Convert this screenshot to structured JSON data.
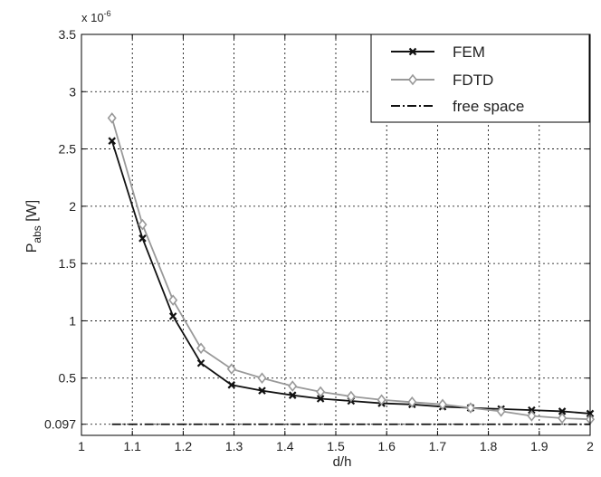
{
  "chart_data": {
    "type": "line",
    "xlabel": "d/h",
    "ylabel_main": "P",
    "ylabel_sub": "abs",
    "ylabel_tail": " [W]",
    "exponent_label": {
      "base": "x 10",
      "power": "-6"
    },
    "xlim": [
      1,
      2
    ],
    "ylim": [
      0,
      3.5
    ],
    "grid": true,
    "legend_position": "top-right",
    "x_ticks": [
      {
        "value": 1.0,
        "label": "1"
      },
      {
        "value": 1.1,
        "label": "1.1"
      },
      {
        "value": 1.2,
        "label": "1.2"
      },
      {
        "value": 1.3,
        "label": "1.3"
      },
      {
        "value": 1.4,
        "label": "1.4"
      },
      {
        "value": 1.5,
        "label": "1.5"
      },
      {
        "value": 1.6,
        "label": "1.6"
      },
      {
        "value": 1.7,
        "label": "1.7"
      },
      {
        "value": 1.8,
        "label": "1.8"
      },
      {
        "value": 1.9,
        "label": "1.9"
      },
      {
        "value": 2.0,
        "label": "2"
      }
    ],
    "y_ticks": [
      {
        "value": 0.097,
        "label": "0.097"
      },
      {
        "value": 0.5,
        "label": "0.5"
      },
      {
        "value": 1.0,
        "label": "1"
      },
      {
        "value": 1.5,
        "label": "1.5"
      },
      {
        "value": 2.0,
        "label": "2"
      },
      {
        "value": 2.5,
        "label": "2.5"
      },
      {
        "value": 3.0,
        "label": "3"
      },
      {
        "value": 3.5,
        "label": "3.5"
      }
    ],
    "series": [
      {
        "name": "FEM",
        "color": "#111111",
        "marker": "x",
        "line": "solid",
        "x": [
          1.06,
          1.12,
          1.18,
          1.235,
          1.295,
          1.355,
          1.415,
          1.47,
          1.53,
          1.59,
          1.65,
          1.71,
          1.765,
          1.825,
          1.885,
          1.945,
          2.0
        ],
        "y": [
          2.57,
          1.72,
          1.04,
          0.63,
          0.44,
          0.39,
          0.35,
          0.32,
          0.3,
          0.28,
          0.27,
          0.25,
          0.24,
          0.23,
          0.22,
          0.21,
          0.19
        ]
      },
      {
        "name": "FDTD",
        "color": "#999999",
        "marker": "diamond",
        "line": "solid",
        "x": [
          1.06,
          1.12,
          1.18,
          1.235,
          1.295,
          1.355,
          1.415,
          1.47,
          1.53,
          1.59,
          1.65,
          1.71,
          1.765,
          1.825,
          1.885,
          1.945,
          2.0
        ],
        "y": [
          2.77,
          1.84,
          1.18,
          0.76,
          0.58,
          0.5,
          0.43,
          0.38,
          0.34,
          0.31,
          0.29,
          0.27,
          0.24,
          0.21,
          0.17,
          0.15,
          0.14
        ]
      },
      {
        "name": "free space",
        "color": "#111111",
        "marker": "none",
        "line": "dashdot",
        "x": [
          1.06,
          2.0
        ],
        "y": [
          0.097,
          0.097
        ]
      }
    ]
  }
}
